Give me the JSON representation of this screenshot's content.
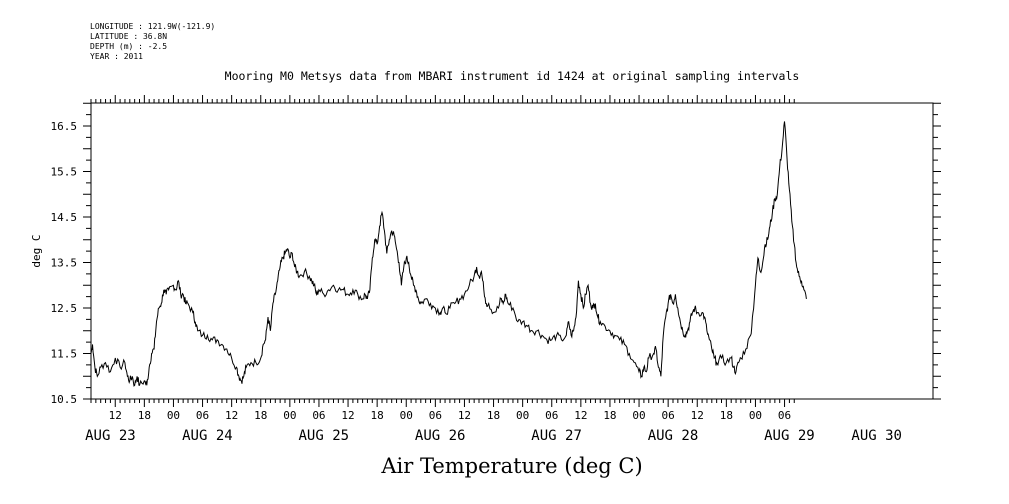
{
  "metadata": {
    "longitude": "LONGITUDE : 121.9W(-121.9)",
    "latitude": "LATITUDE : 36.8N",
    "depth": "DEPTH (m) : -2.5",
    "year": "YEAR : 2011"
  },
  "chart_data": {
    "type": "line",
    "title": "Air Temperature (deg C)",
    "subtitle": "Mooring M0 Metsys data from MBARI instrument id 1424 at original sampling intervals",
    "xlabel": "",
    "ylabel": "deg C",
    "x_units": "hours since 2011-08-23 00:00",
    "xlim": [
      7,
      152
    ],
    "ylim": [
      10.5,
      17.0
    ],
    "y_ticks": [
      "10.5",
      "11.5",
      "12.5",
      "13.5",
      "14.5",
      "15.5",
      "16.5"
    ],
    "y_tick_values": [
      10.5,
      11.5,
      12.5,
      13.5,
      14.5,
      15.5,
      16.5
    ],
    "hour_ticks": {
      "values": [
        12,
        18,
        24,
        30,
        36,
        42,
        48,
        54,
        60,
        66,
        72,
        78,
        84,
        90,
        96,
        102,
        108,
        114,
        120,
        126,
        132,
        138,
        144,
        150
      ],
      "labels": [
        "12",
        "18",
        "00",
        "06",
        "12",
        "18",
        "00",
        "06",
        "12",
        "18",
        "00",
        "06",
        "12",
        "18",
        "00",
        "06",
        "12",
        "18",
        "00",
        "06",
        "12",
        "18",
        "00",
        "06"
      ]
    },
    "day_labels": {
      "values": [
        11,
        31,
        55,
        79,
        103,
        127,
        151,
        169
      ],
      "labels": [
        "AUG 23",
        "AUG 24",
        "AUG 25",
        "AUG 26",
        "AUG 27",
        "AUG 28",
        "AUG 29",
        "AUG 30"
      ]
    },
    "grid": false,
    "series": [
      {
        "name": "",
        "points": [
          [
            7.0,
            11.5
          ],
          [
            7.3,
            11.7
          ],
          [
            7.8,
            11.2
          ],
          [
            8.3,
            11.0
          ],
          [
            9,
            11.2
          ],
          [
            10,
            11.3
          ],
          [
            11,
            11.1
          ],
          [
            12,
            11.4
          ],
          [
            13,
            11.2
          ],
          [
            14,
            11.3
          ],
          [
            14.5,
            11.0
          ],
          [
            15,
            10.9
          ],
          [
            15.5,
            11.0
          ],
          [
            16,
            10.8
          ],
          [
            16.5,
            11.0
          ],
          [
            17,
            10.8
          ],
          [
            18,
            10.9
          ],
          [
            18.5,
            10.8
          ],
          [
            19,
            11.2
          ],
          [
            19.5,
            11.5
          ],
          [
            20,
            11.6
          ],
          [
            20.5,
            12.2
          ],
          [
            21,
            12.5
          ],
          [
            21.5,
            12.6
          ],
          [
            22,
            12.9
          ],
          [
            22.5,
            12.8
          ],
          [
            23,
            12.9
          ],
          [
            24,
            13.0
          ],
          [
            24.5,
            12.9
          ],
          [
            25,
            13.1
          ],
          [
            25.5,
            12.8
          ],
          [
            26,
            12.8
          ],
          [
            26.5,
            12.6
          ],
          [
            27,
            12.6
          ],
          [
            28,
            12.4
          ],
          [
            28.5,
            12.2
          ],
          [
            29,
            12.0
          ],
          [
            30,
            11.9
          ],
          [
            31,
            11.9
          ],
          [
            32,
            11.8
          ],
          [
            33,
            11.8
          ],
          [
            34,
            11.7
          ],
          [
            35,
            11.6
          ],
          [
            36,
            11.4
          ],
          [
            37,
            11.2
          ],
          [
            37.5,
            11.0
          ],
          [
            38,
            10.9
          ],
          [
            38.5,
            11.0
          ],
          [
            39,
            11.2
          ],
          [
            40,
            11.3
          ],
          [
            41,
            11.3
          ],
          [
            42,
            11.4
          ],
          [
            42.5,
            11.7
          ],
          [
            43,
            11.8
          ],
          [
            43.5,
            12.3
          ],
          [
            44,
            12.0
          ],
          [
            44.5,
            12.6
          ],
          [
            45,
            12.8
          ],
          [
            45.5,
            13.1
          ],
          [
            46,
            13.4
          ],
          [
            46.5,
            13.6
          ],
          [
            47,
            13.7
          ],
          [
            47.5,
            13.8
          ],
          [
            48,
            13.6
          ],
          [
            48.5,
            13.7
          ],
          [
            49,
            13.4
          ],
          [
            49.5,
            13.3
          ],
          [
            50,
            13.2
          ],
          [
            51,
            13.3
          ],
          [
            52,
            13.2
          ],
          [
            52.5,
            13.1
          ],
          [
            53,
            13.0
          ],
          [
            53.5,
            12.8
          ],
          [
            54,
            12.9
          ],
          [
            55,
            12.8
          ],
          [
            56,
            12.9
          ],
          [
            57,
            13.0
          ],
          [
            58,
            12.9
          ],
          [
            59,
            12.9
          ],
          [
            60,
            12.8
          ],
          [
            61,
            12.9
          ],
          [
            62,
            12.8
          ],
          [
            63,
            12.7
          ],
          [
            63.5,
            12.8
          ],
          [
            64,
            12.7
          ],
          [
            64.5,
            12.9
          ],
          [
            65,
            13.6
          ],
          [
            65.5,
            14.0
          ],
          [
            66,
            13.9
          ],
          [
            66.5,
            14.3
          ],
          [
            67,
            14.6
          ],
          [
            67.5,
            14.2
          ],
          [
            68,
            13.7
          ],
          [
            68.5,
            14.0
          ],
          [
            69,
            14.2
          ],
          [
            69.5,
            14.1
          ],
          [
            70,
            13.8
          ],
          [
            70.5,
            13.5
          ],
          [
            71,
            13.0
          ],
          [
            71.5,
            13.4
          ],
          [
            72,
            13.6
          ],
          [
            72.5,
            13.5
          ],
          [
            73,
            13.2
          ],
          [
            73.5,
            13.0
          ],
          [
            74,
            12.9
          ],
          [
            74.5,
            12.7
          ],
          [
            75,
            12.6
          ],
          [
            76,
            12.7
          ],
          [
            77,
            12.6
          ],
          [
            78,
            12.5
          ],
          [
            79,
            12.4
          ],
          [
            79.5,
            12.5
          ],
          [
            80,
            12.4
          ],
          [
            81,
            12.5
          ],
          [
            82,
            12.6
          ],
          [
            83,
            12.7
          ],
          [
            84,
            12.8
          ],
          [
            85,
            13.0
          ],
          [
            86,
            13.2
          ],
          [
            86.5,
            13.4
          ],
          [
            87,
            13.2
          ],
          [
            87.5,
            13.3
          ],
          [
            88,
            12.9
          ],
          [
            88.5,
            12.6
          ],
          [
            89,
            12.6
          ],
          [
            90,
            12.4
          ],
          [
            91,
            12.5
          ],
          [
            91.5,
            12.7
          ],
          [
            92,
            12.6
          ],
          [
            92.5,
            12.8
          ],
          [
            93,
            12.6
          ],
          [
            94,
            12.5
          ],
          [
            95,
            12.2
          ],
          [
            96,
            12.2
          ],
          [
            97,
            12.1
          ],
          [
            98,
            12.0
          ],
          [
            99,
            12.0
          ],
          [
            100,
            11.9
          ],
          [
            101,
            11.8
          ],
          [
            102,
            11.8
          ],
          [
            103,
            11.9
          ],
          [
            104,
            11.8
          ],
          [
            105,
            11.9
          ],
          [
            105.5,
            12.2
          ],
          [
            106,
            11.9
          ],
          [
            106.5,
            12.0
          ],
          [
            107,
            12.3
          ],
          [
            107.5,
            13.1
          ],
          [
            108,
            12.8
          ],
          [
            108.5,
            12.5
          ],
          [
            109,
            12.8
          ],
          [
            109.5,
            13.0
          ],
          [
            110,
            12.6
          ],
          [
            110.5,
            12.5
          ],
          [
            111,
            12.6
          ],
          [
            111.5,
            12.3
          ],
          [
            112,
            12.2
          ],
          [
            113,
            12.1
          ],
          [
            114,
            12.0
          ],
          [
            115,
            11.9
          ],
          [
            116,
            11.8
          ],
          [
            117,
            11.7
          ],
          [
            118,
            11.5
          ],
          [
            119,
            11.3
          ],
          [
            120,
            11.1
          ],
          [
            120.5,
            11.0
          ],
          [
            121,
            11.2
          ],
          [
            121.5,
            11.1
          ],
          [
            122,
            11.4
          ],
          [
            123,
            11.5
          ],
          [
            123.5,
            11.6
          ],
          [
            124,
            11.2
          ],
          [
            124.5,
            11.0
          ],
          [
            125,
            11.9
          ],
          [
            125.5,
            12.3
          ],
          [
            126,
            12.6
          ],
          [
            126.5,
            12.8
          ],
          [
            127,
            12.6
          ],
          [
            127.5,
            12.8
          ],
          [
            128,
            12.5
          ],
          [
            128.5,
            12.2
          ],
          [
            129,
            12.0
          ],
          [
            129.5,
            11.9
          ],
          [
            130,
            12.0
          ],
          [
            130.5,
            12.2
          ],
          [
            131,
            12.4
          ],
          [
            131.5,
            12.5
          ],
          [
            132,
            12.4
          ],
          [
            133,
            12.4
          ],
          [
            133.5,
            12.3
          ],
          [
            134,
            12.0
          ],
          [
            134.5,
            11.8
          ],
          [
            135,
            11.6
          ],
          [
            135.5,
            11.4
          ],
          [
            136,
            11.3
          ],
          [
            137,
            11.4
          ],
          [
            138,
            11.3
          ],
          [
            139,
            11.4
          ],
          [
            139.5,
            11.2
          ],
          [
            140,
            11.1
          ],
          [
            140.5,
            11.3
          ],
          [
            141,
            11.4
          ],
          [
            142,
            11.6
          ],
          [
            143,
            11.9
          ],
          [
            143.5,
            12.4
          ],
          [
            144,
            13.0
          ],
          [
            144.5,
            13.6
          ],
          [
            145,
            13.3
          ],
          [
            145.5,
            13.5
          ],
          [
            146,
            13.9
          ],
          [
            146.5,
            14.0
          ],
          [
            147,
            14.3
          ],
          [
            147.5,
            14.6
          ],
          [
            148,
            14.9
          ],
          [
            148.5,
            15.0
          ],
          [
            149,
            15.6
          ],
          [
            149.5,
            16.0
          ],
          [
            150,
            16.6
          ],
          [
            150.5,
            15.8
          ],
          [
            151,
            15.1
          ],
          [
            151.5,
            14.4
          ],
          [
            152,
            13.9
          ],
          [
            152.5,
            13.4
          ],
          [
            153,
            13.2
          ],
          [
            153.5,
            13.1
          ],
          [
            154,
            12.9
          ],
          [
            154.5,
            12.7
          ]
        ]
      }
    ]
  }
}
